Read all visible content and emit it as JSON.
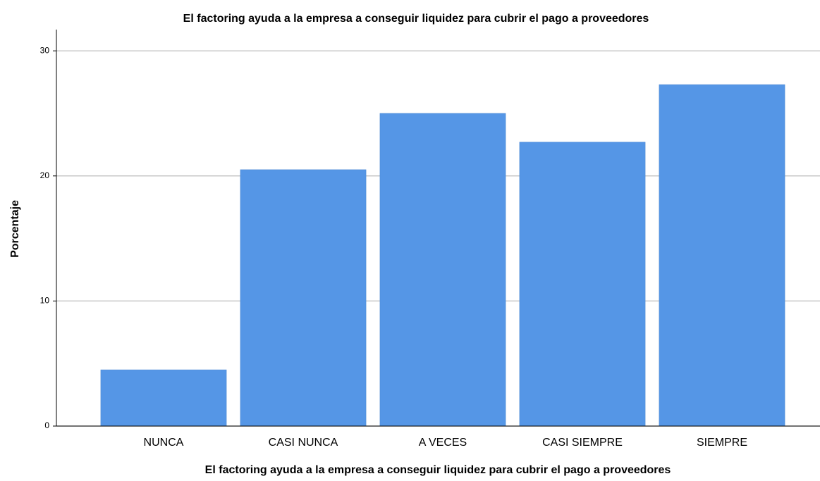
{
  "chart_data": {
    "type": "bar",
    "title": "El factoring ayuda a la empresa a conseguir liquidez para cubrir el pago a proveedores",
    "x_label": "El factoring ayuda a la empresa a conseguir liquidez para cubrir el pago a proveedores",
    "y_label": "Porcentaje",
    "categories": [
      "NUNCA",
      "CASI NUNCA",
      "A VECES",
      "CASI SIEMPRE",
      "SIEMPRE"
    ],
    "values": [
      4.5,
      20.5,
      25.0,
      22.7,
      27.3
    ],
    "color": "#5596e6",
    "ylim": [
      0,
      31.7
    ],
    "yticks": [
      0,
      10,
      20,
      30
    ],
    "grid": true
  }
}
